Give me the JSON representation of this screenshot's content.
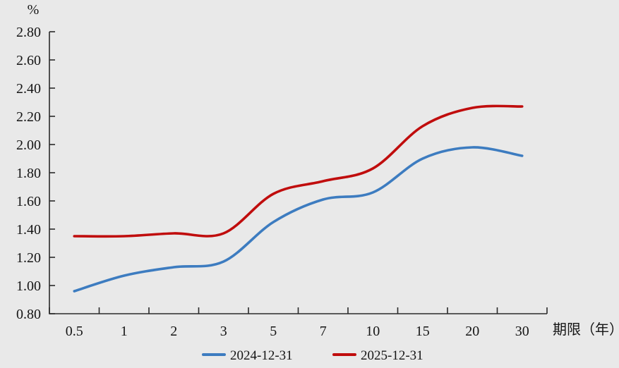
{
  "chart_data": {
    "type": "line",
    "title": "",
    "unit_label": "%",
    "xlabel": "期限（年）",
    "categories": [
      "0.5",
      "1",
      "2",
      "3",
      "5",
      "7",
      "10",
      "15",
      "20",
      "30"
    ],
    "series": [
      {
        "name": "2024-12-31",
        "color": "#3d7cc0",
        "values": [
          0.96,
          1.07,
          1.13,
          1.17,
          1.45,
          1.61,
          1.66,
          1.9,
          1.98,
          1.92
        ]
      },
      {
        "name": "2025-12-31",
        "color": "#c00d0d",
        "values": [
          1.35,
          1.35,
          1.37,
          1.37,
          1.65,
          1.74,
          1.83,
          2.13,
          2.26,
          2.27
        ]
      }
    ],
    "ylim": [
      0.8,
      2.8
    ],
    "ytick_step": 0.2,
    "ytick_labels": [
      "0.80",
      "1.00",
      "1.20",
      "1.40",
      "1.60",
      "1.80",
      "2.00",
      "2.20",
      "2.40",
      "2.60",
      "2.80"
    ],
    "grid": false,
    "smooth": true,
    "legend_position": "bottom",
    "tick_style": "inside"
  },
  "colors": {
    "background": "#e9e9e9",
    "axis": "#2a2a2a",
    "text": "#151515"
  }
}
